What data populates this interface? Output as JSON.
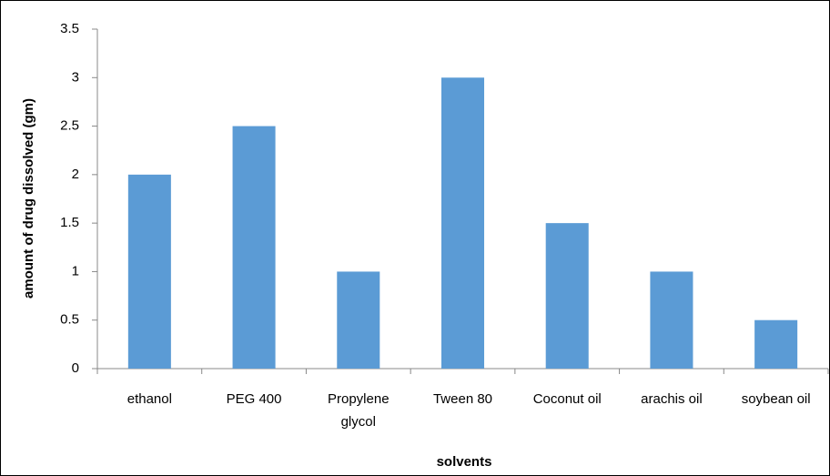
{
  "chart_data": {
    "type": "bar",
    "xlabel": "solvents",
    "ylabel": "amount of drug dissolved (gm)",
    "categories": [
      "ethanol",
      "PEG 400",
      "Propylene glycol",
      "Tween 80",
      "Coconut oil",
      "arachis oil",
      "soybean oil"
    ],
    "values": [
      2,
      2.5,
      1,
      3,
      1.5,
      1,
      0.5
    ],
    "color": "#5b9bd5",
    "ylim": [
      0,
      3.5
    ],
    "yticks": [
      0,
      0.5,
      1,
      1.5,
      2,
      2.5,
      3,
      3.5
    ],
    "grid": false
  }
}
